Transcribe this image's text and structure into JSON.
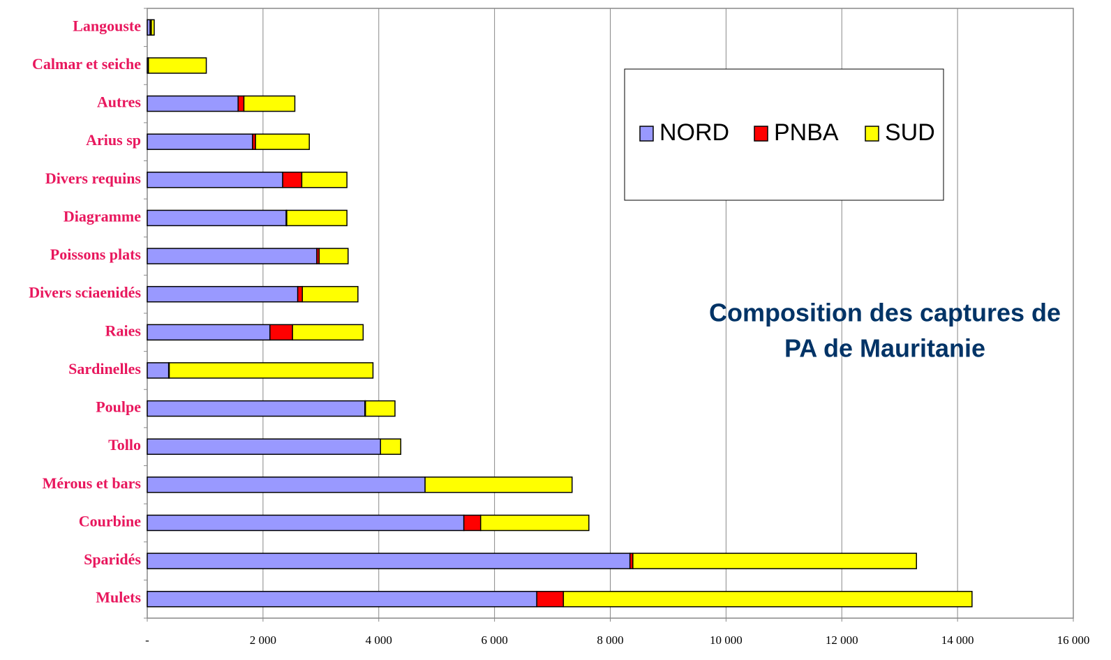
{
  "chart_data": {
    "type": "bar",
    "orientation": "horizontal",
    "stacked": true,
    "title": [
      "Composition des captures de",
      "PA de Mauritanie"
    ],
    "categories": [
      "Langouste",
      "Calmar et seiche",
      "Autres",
      "Arius sp",
      "Divers requins",
      "Diagramme",
      "Poissons plats",
      "Divers sciaenidés",
      "Raies",
      "Sardinelles",
      "Poulpe",
      "Tollo",
      "Mérous et bars",
      "Courbine",
      "Sparidés",
      "Mulets"
    ],
    "series": [
      {
        "name": "NORD",
        "color": "#9999ff",
        "values": [
          50,
          20,
          1570,
          1820,
          2340,
          2400,
          2930,
          2600,
          2120,
          370,
          3760,
          4030,
          4800,
          5470,
          8340,
          6730
        ]
      },
      {
        "name": "PNBA",
        "color": "#ff0000",
        "values": [
          20,
          0,
          100,
          50,
          330,
          10,
          40,
          80,
          390,
          10,
          10,
          0,
          0,
          290,
          50,
          460
        ]
      },
      {
        "name": "SUD",
        "color": "#ffff00",
        "values": [
          50,
          1000,
          880,
          930,
          780,
          1040,
          500,
          960,
          1220,
          3520,
          510,
          350,
          2540,
          1870,
          4900,
          7060
        ]
      }
    ],
    "xlim": [
      0,
      16000
    ],
    "xticks": [
      {
        "value": 0,
        "label": "-"
      },
      {
        "value": 2000,
        "label": "2 000"
      },
      {
        "value": 4000,
        "label": "4 000"
      },
      {
        "value": 6000,
        "label": "6 000"
      },
      {
        "value": 8000,
        "label": "8 000"
      },
      {
        "value": 10000,
        "label": "10 000"
      },
      {
        "value": 12000,
        "label": "12 000"
      },
      {
        "value": 14000,
        "label": "14 000"
      },
      {
        "value": 16000,
        "label": "16 000"
      }
    ],
    "grid": true,
    "legend": "top-right"
  }
}
